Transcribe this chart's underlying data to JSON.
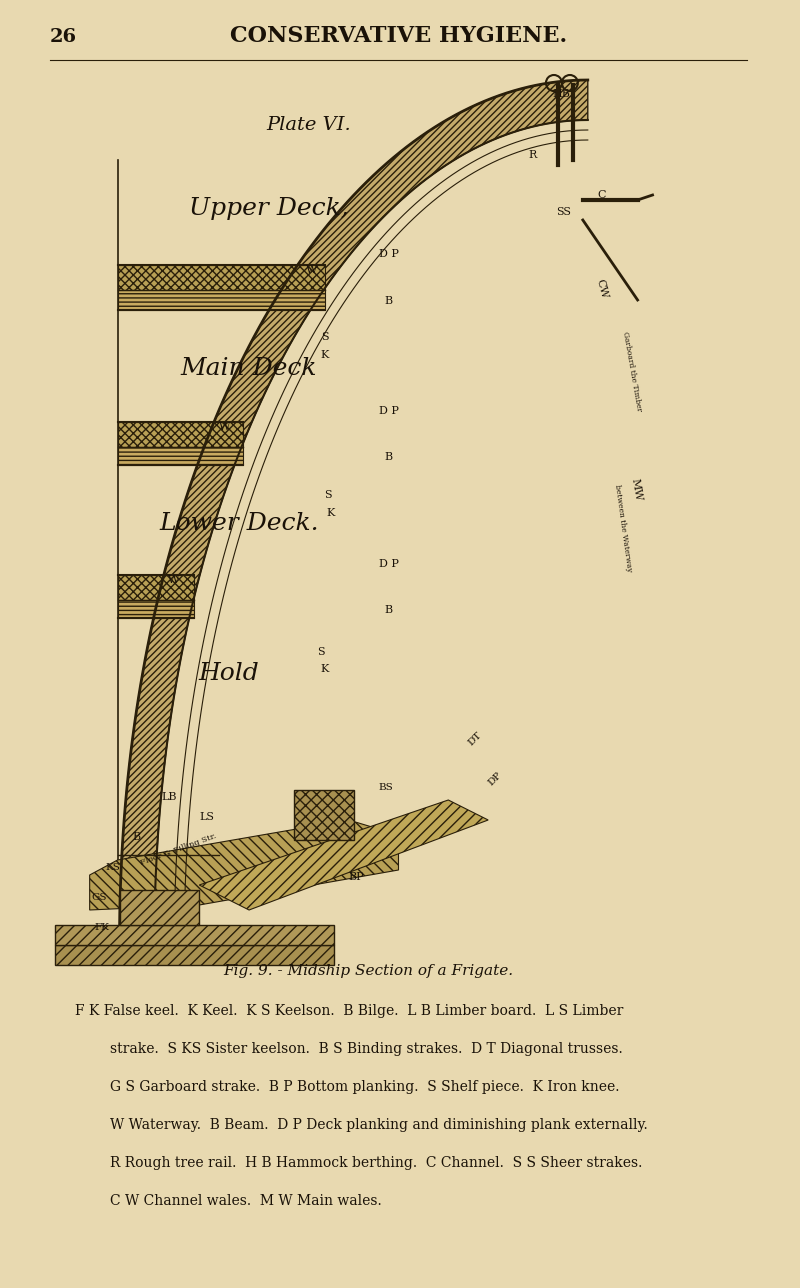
{
  "bg_color": "#e8d9b0",
  "page_number": "26",
  "header_text": "CONSERVATIVE HYGIENE.",
  "plate_text": "Plate VI.",
  "upper_deck_label": "Upper Deck,",
  "main_deck_label": "Main Deck",
  "lower_deck_label": "Lower Deck.",
  "hold_label": "Hold",
  "fig_caption": "Fig. 9. - Midship Section of a Frigate.",
  "legend_lines": [
    "F K False keel.  K Keel.  K S Keelson.  B Bilge.  L B Limber board.  L S Limber",
    "strake.  S KS Sister keelson.  B S Binding strakes.  D T Diagonal trusses.",
    "G S Garboard strake.  B P Bottom planking.  S Shelf piece.  K Iron knee.",
    "W Waterway.  B Beam.  D P Deck planking and diminishing plank externally.",
    "R Rough tree rail.  H B Hammock berthing.  C Channel.  S S Sheer strakes.",
    "C W Channel wales.  M W Main wales."
  ],
  "dark_color": "#1a1208",
  "line_color": "#2a1f0a",
  "hull_fill": "#c8b882",
  "deck_fill": "#b8a060",
  "text_color": "#1a1208"
}
